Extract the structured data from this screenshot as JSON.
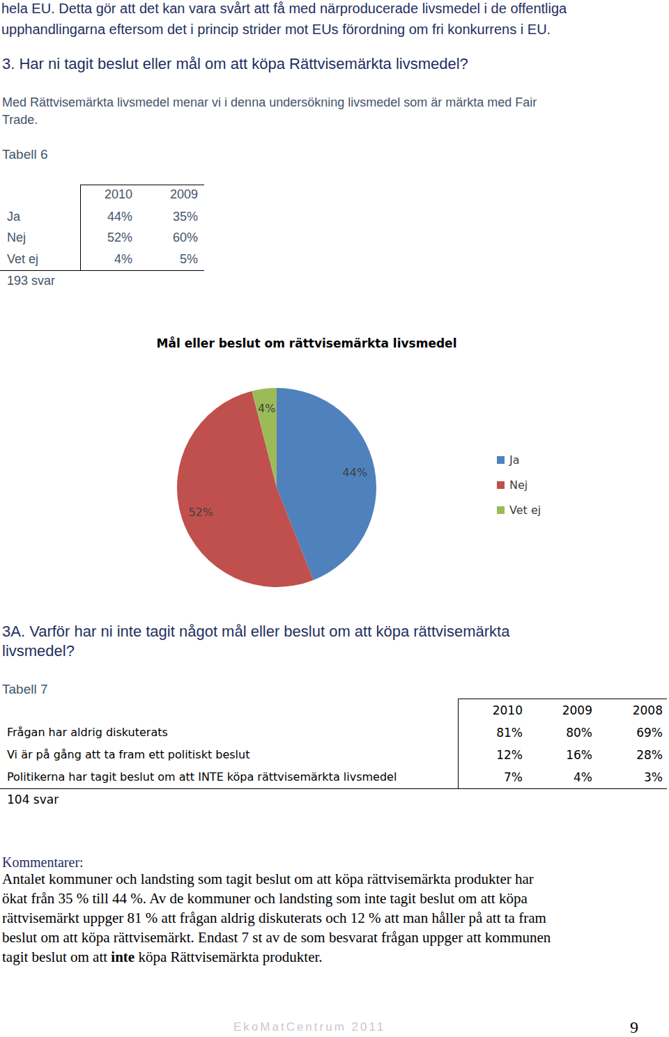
{
  "intro_lines": [
    "hela EU. Detta gör att det kan vara svårt att få med närproducerade livsmedel i de offentliga",
    "upphandlingarna eftersom det i princip strider mot EUs förordning om fri konkurrens i EU."
  ],
  "question3": {
    "heading": "3. Har ni tagit beslut eller mål om att köpa Rättvisemärkta livsmedel?",
    "note_lines": [
      "Med Rättvisemärkta livsmedel menar vi i denna undersökning livsmedel som är märkta med Fair",
      "Trade."
    ]
  },
  "table6": {
    "title": "Tabell 6",
    "header": [
      "2010",
      "2009"
    ],
    "rows": [
      [
        "Ja",
        "44%",
        "35%"
      ],
      [
        "Nej",
        "52%",
        "60%"
      ],
      [
        "Vet ej",
        "4%",
        "5%"
      ]
    ],
    "footer": "193 svar"
  },
  "chart_data": {
    "type": "pie",
    "title": "Mål eller beslut om rättvisemärkta livsmedel",
    "categories": [
      "Ja",
      "Nej",
      "Vet ej"
    ],
    "values": [
      44,
      52,
      4
    ],
    "value_labels": [
      "44%",
      "52%",
      "4%"
    ],
    "colors": [
      "#4f81bd",
      "#c0504d",
      "#9bbb59"
    ],
    "legend": "right",
    "data_labels": true
  },
  "question3a": {
    "heading_lines": [
      "3A. Varför har ni inte tagit något mål eller beslut om att köpa rättvisemärkta",
      "livsmedel?"
    ]
  },
  "table7": {
    "title": "Tabell 7",
    "header": [
      "2010",
      "2009",
      "2008"
    ],
    "rows": [
      [
        "Frågan har aldrig diskuterats",
        "81%",
        "80%",
        "69%"
      ],
      [
        "Vi är på gång att ta fram ett politiskt beslut",
        "12%",
        "16%",
        "28%"
      ],
      [
        "Politikerna har tagit beslut om att INTE köpa rättvisemärkta livsmedel",
        "7%",
        "4%",
        "3%"
      ]
    ],
    "footer": "104 svar"
  },
  "comments": {
    "title": "Kommentarer:",
    "lines": [
      "Antalet kommuner och landsting som tagit beslut om att köpa rättvisemärkta produkter har",
      "ökat från 35 % till 44 %. Av de kommuner och landsting som inte tagit beslut om att köpa",
      "rättvisemärkt uppger 81 % att frågan aldrig diskuterats och 12 % att man håller på att ta fram",
      "beslut om att köpa rättvisemärkt. Endast 7 st av de som besvarat frågan uppger att kommunen",
      [
        {
          "text": "tagit beslut om att "
        },
        {
          "text": "inte",
          "bold": true
        },
        {
          "text": " köpa Rättvisemärkta produkter."
        }
      ]
    ]
  },
  "footer": {
    "text": "EkoMatCentrum 2011",
    "page": "9"
  }
}
